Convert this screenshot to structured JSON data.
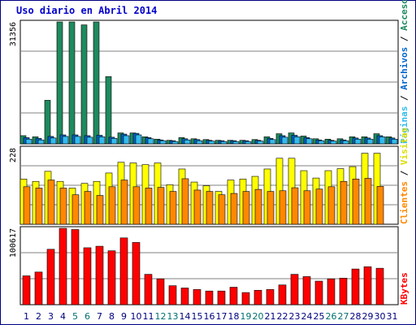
{
  "title": "Uso diario en Abril 2014",
  "colors": {
    "hits": "#1e8a5e",
    "files": "#0066cc",
    "pages": "#33bbee",
    "visits": "#ffff00",
    "sites": "#ff8800",
    "kbytes": "#ff0000",
    "weekend_day": "#007070",
    "weekday": "#000080",
    "grid": "#808080"
  },
  "chart_data": [
    {
      "type": "bar",
      "categories": [
        "1",
        "2",
        "3",
        "4",
        "5",
        "6",
        "7",
        "8",
        "9",
        "10",
        "11",
        "12",
        "13",
        "14",
        "15",
        "16",
        "17",
        "18",
        "19",
        "20",
        "21",
        "22",
        "23",
        "24",
        "25",
        "26",
        "27",
        "28",
        "29",
        "30",
        "31"
      ],
      "y_max_label": "31356",
      "ylim": [
        0,
        31356
      ],
      "legend": [
        {
          "text": "Páginas",
          "color": "#33bbee"
        },
        {
          "text": " / ",
          "color": "#000000"
        },
        {
          "text": "Archivos",
          "color": "#0066cc"
        },
        {
          "text": " / ",
          "color": "#000000"
        },
        {
          "text": "Accesos",
          "color": "#1e8a5e"
        }
      ],
      "series": [
        {
          "key": "hits",
          "values": [
            2100,
            1800,
            11200,
            31356,
            31356,
            30600,
            31356,
            17300,
            2800,
            2800,
            1800,
            1200,
            900,
            1600,
            1300,
            1100,
            900,
            900,
            900,
            1100,
            1800,
            2600,
            2800,
            2000,
            1300,
            1200,
            1300,
            1800,
            1800,
            2600,
            1800
          ]
        },
        {
          "key": "files",
          "values": [
            1600,
            1400,
            1900,
            2300,
            2300,
            2100,
            2200,
            1700,
            2500,
            2700,
            1600,
            1000,
            800,
            1300,
            1100,
            900,
            800,
            800,
            800,
            900,
            1400,
            2100,
            2200,
            1600,
            1000,
            900,
            1000,
            1500,
            1500,
            2100,
            1500
          ]
        },
        {
          "key": "pages",
          "values": [
            1200,
            1000,
            1500,
            1900,
            1900,
            1700,
            1800,
            1400,
            2100,
            2300,
            1300,
            800,
            600,
            1000,
            800,
            700,
            600,
            600,
            600,
            700,
            1100,
            1700,
            1800,
            1300,
            800,
            700,
            800,
            1200,
            1200,
            1800,
            1200
          ]
        }
      ]
    },
    {
      "type": "bar",
      "categories": [
        "1",
        "2",
        "3",
        "4",
        "5",
        "6",
        "7",
        "8",
        "9",
        "10",
        "11",
        "12",
        "13",
        "14",
        "15",
        "16",
        "17",
        "18",
        "19",
        "20",
        "21",
        "22",
        "23",
        "24",
        "25",
        "26",
        "27",
        "28",
        "29",
        "30",
        "31"
      ],
      "y_max_label": "228",
      "ylim": [
        0,
        228
      ],
      "legend": [
        {
          "text": "Clientes",
          "color": "#ff8800"
        },
        {
          "text": " / ",
          "color": "#000000"
        },
        {
          "text": "Visitas",
          "color": "#dddd00"
        }
      ],
      "series": [
        {
          "key": "visits",
          "values": [
            135,
            128,
            158,
            128,
            108,
            122,
            128,
            153,
            185,
            183,
            178,
            183,
            118,
            165,
            126,
            115,
            98,
            132,
            135,
            143,
            165,
            197,
            197,
            160,
            138,
            160,
            166,
            172,
            212,
            212,
            0
          ]
        },
        {
          "key": "sites",
          "values": [
            112,
            108,
            132,
            108,
            88,
            98,
            86,
            112,
            132,
            112,
            108,
            110,
            98,
            136,
            102,
            98,
            88,
            92,
            98,
            104,
            98,
            100,
            109,
            100,
            105,
            112,
            128,
            135,
            137,
            113,
            0
          ]
        }
      ]
    },
    {
      "type": "bar",
      "categories": [
        "1",
        "2",
        "3",
        "4",
        "5",
        "6",
        "7",
        "8",
        "9",
        "10",
        "11",
        "12",
        "13",
        "14",
        "15",
        "16",
        "17",
        "18",
        "19",
        "20",
        "21",
        "22",
        "23",
        "24",
        "25",
        "26",
        "27",
        "28",
        "29",
        "30",
        "31"
      ],
      "y_max_label": "100617",
      "ylim": [
        0,
        100617
      ],
      "legend": [
        {
          "text": "KBytes",
          "color": "#ff0000"
        }
      ],
      "series": [
        {
          "key": "kbytes",
          "values": [
            38000,
            43000,
            73000,
            100617,
            99000,
            75000,
            77000,
            71000,
            88000,
            82000,
            40000,
            34000,
            25000,
            22000,
            20000,
            18000,
            18000,
            23000,
            16000,
            19000,
            20000,
            26000,
            40000,
            37000,
            31000,
            34000,
            35000,
            47000,
            50000,
            48000,
            0
          ]
        }
      ]
    }
  ]
}
